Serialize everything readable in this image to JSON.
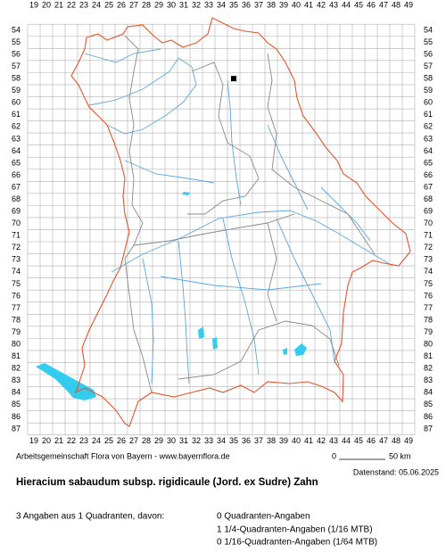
{
  "map": {
    "columns": [
      19,
      20,
      21,
      22,
      23,
      24,
      25,
      26,
      27,
      28,
      29,
      30,
      31,
      32,
      33,
      34,
      35,
      36,
      37,
      38,
      39,
      40,
      41,
      42,
      43,
      44,
      45,
      46,
      47,
      48,
      49
    ],
    "rows": [
      54,
      55,
      56,
      57,
      58,
      59,
      60,
      61,
      62,
      63,
      64,
      65,
      66,
      67,
      68,
      69,
      70,
      71,
      72,
      73,
      74,
      75,
      76,
      77,
      78,
      79,
      80,
      81,
      82,
      83,
      84,
      85,
      86,
      87
    ],
    "records": [
      {
        "column": 35,
        "row": 58
      }
    ],
    "credit": "Arbeitsgemeinschaft Flora von Bayern - www.bayernflora.de",
    "scale_start": "0",
    "scale_end": "50 km",
    "data_date": "Datenstand: 05.06.2025"
  },
  "title": "Hieracium sabaudum subsp. rigidicaule (Jord. ex Sudre) Zahn",
  "summary": "3 Angaben aus 1 Quadranten, davon:",
  "counts": [
    "0 Quadranten-Angaben",
    "1 1/4-Quadranten-Angaben (1/16 MTB)",
    "0 1/16-Quadranten-Angaben (1/64 MTB)"
  ]
}
